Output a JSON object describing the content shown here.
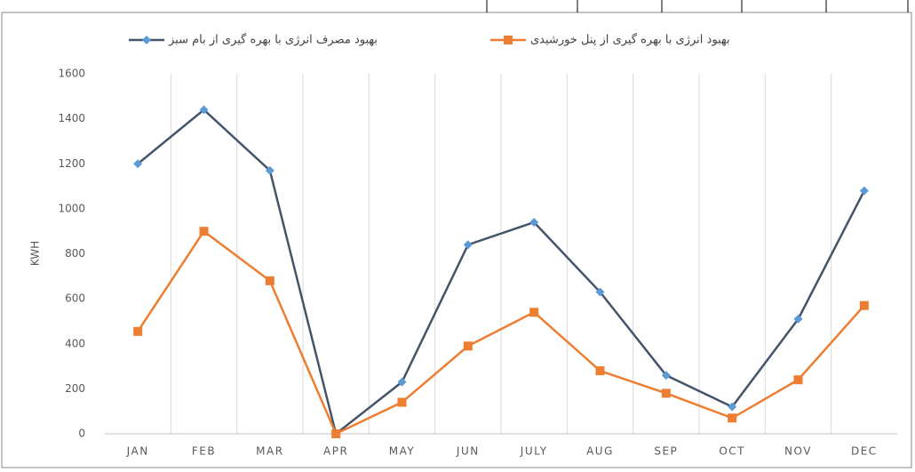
{
  "chart_data": {
    "type": "line",
    "y_label": "KWH",
    "categories": [
      "JAN",
      "FEB",
      "MAR",
      "APR",
      "MAY",
      "JUN",
      "JULY",
      "AUG",
      "SEP",
      "OCT",
      "NOV",
      "DEC"
    ],
    "series": [
      {
        "name": "بهبود مصرف انرژی با بهره گیری از بام سبز",
        "color": "#44546a",
        "marker_color": "#5b9bd5",
        "marker": "diamond",
        "values": [
          1200,
          1440,
          1170,
          0,
          230,
          840,
          940,
          630,
          260,
          120,
          510,
          1080
        ]
      },
      {
        "name": "بهبود انرژی با بهره گیری از پنل خورشیدی",
        "color": "#ed7d31",
        "marker_color": "#ed7d31",
        "marker": "square",
        "values": [
          455,
          900,
          680,
          0,
          140,
          390,
          540,
          280,
          180,
          70,
          240,
          570
        ]
      }
    ],
    "ylim": [
      0,
      1600
    ],
    "yticks": [
      0,
      200,
      400,
      600,
      800,
      1000,
      1200,
      1400,
      1600
    ],
    "grid": false,
    "x_grid": true,
    "legend": "top"
  }
}
